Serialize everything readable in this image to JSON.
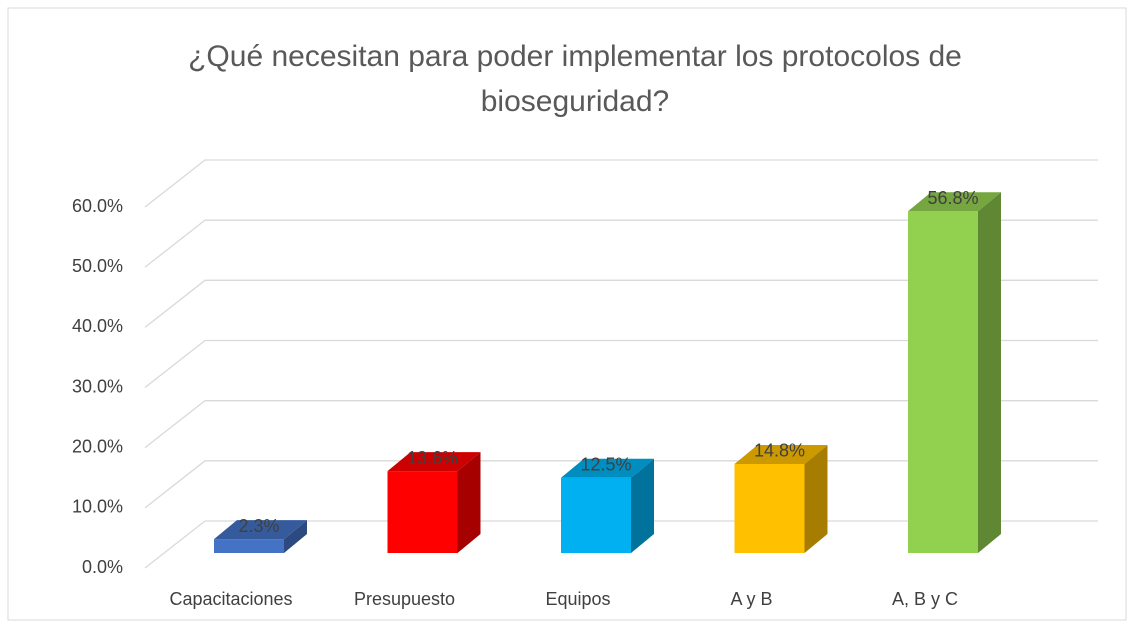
{
  "chart_data": {
    "type": "bar3d",
    "title": [
      "¿Qué necesitan para poder implementar los protocolos de",
      "bioseguridad?"
    ],
    "categories": [
      "Capacitaciones",
      "Presupuesto",
      "Equipos",
      "A y B",
      "A, B y C"
    ],
    "values": [
      2.3,
      13.6,
      12.5,
      14.8,
      56.8
    ],
    "value_labels": [
      "2.3%",
      "13.6%",
      "12.5%",
      "14.8%",
      "56.8%"
    ],
    "colors": [
      "#4472c4",
      "#ff0000",
      "#00b0f0",
      "#ffc000",
      "#92d050"
    ],
    "ylim": [
      0,
      60
    ],
    "yticks": [
      {
        "value": 0,
        "label": "0.0%"
      },
      {
        "value": 10,
        "label": "10.0%"
      },
      {
        "value": 20,
        "label": "20.0%"
      },
      {
        "value": 30,
        "label": "30.0%"
      },
      {
        "value": 40,
        "label": "40.0%"
      },
      {
        "value": 50,
        "label": "50.0%"
      },
      {
        "value": 60,
        "label": "60.0%"
      }
    ],
    "grid": true
  }
}
